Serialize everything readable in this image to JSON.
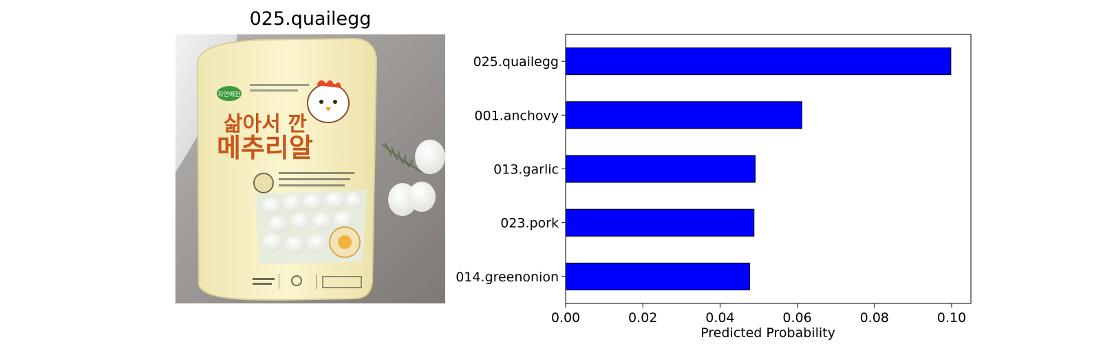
{
  "image_panel": {
    "title": "025.quailegg",
    "subject": "packaged-quail-eggs-photo",
    "package_text": {
      "brand": "자연애찬",
      "line1": "삶아서 깐",
      "line2": "메추리알"
    },
    "colors": {
      "package": "#f7f0c0",
      "package_title": "#c8561a",
      "background_grey": "#8f8a86",
      "egg_white": "#f4f5ef"
    }
  },
  "chart_data": {
    "type": "bar",
    "orientation": "horizontal",
    "categories": [
      "025.quailegg",
      "001.anchovy",
      "013.garlic",
      "023.pork",
      "014.greenonion"
    ],
    "values": [
      0.0998,
      0.0612,
      0.0491,
      0.0488,
      0.0477
    ],
    "xlabel": "Predicted Probability",
    "ylabel": "",
    "xlim": [
      0,
      0.105
    ],
    "xticks": [
      0.0,
      0.02,
      0.04,
      0.06,
      0.08,
      0.1
    ],
    "xtick_labels": [
      "0.00",
      "0.02",
      "0.04",
      "0.06",
      "0.08",
      "0.10"
    ],
    "grid": false,
    "colors": {
      "bar": "#0000ff",
      "edge": "#000000"
    }
  }
}
